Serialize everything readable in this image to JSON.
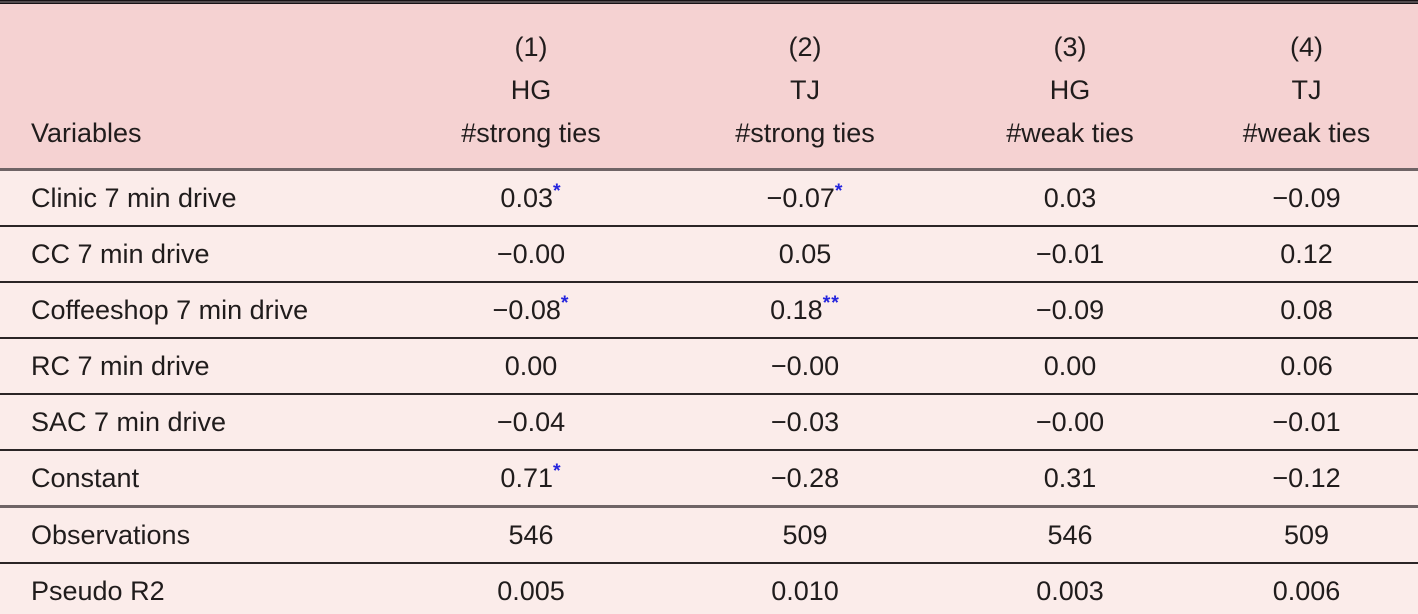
{
  "table": {
    "variables_header": "Variables",
    "columns": [
      {
        "number": "(1)",
        "group": "HG",
        "measure": "#strong ties"
      },
      {
        "number": "(2)",
        "group": "TJ",
        "measure": "#strong ties"
      },
      {
        "number": "(3)",
        "group": "HG",
        "measure": "#weak ties"
      },
      {
        "number": "(4)",
        "group": "TJ",
        "measure": "#weak ties"
      }
    ],
    "rows": [
      {
        "label": "Clinic 7 min drive",
        "cells": [
          {
            "value": "0.03",
            "stars": "*"
          },
          {
            "value": "−0.07",
            "stars": "*"
          },
          {
            "value": "0.03",
            "stars": ""
          },
          {
            "value": "−0.09",
            "stars": ""
          }
        ]
      },
      {
        "label": "CC 7 min drive",
        "cells": [
          {
            "value": "−0.00",
            "stars": ""
          },
          {
            "value": "0.05",
            "stars": ""
          },
          {
            "value": "−0.01",
            "stars": ""
          },
          {
            "value": "0.12",
            "stars": ""
          }
        ]
      },
      {
        "label": "Coffeeshop 7 min drive",
        "cells": [
          {
            "value": "−0.08",
            "stars": "*"
          },
          {
            "value": "0.18",
            "stars": "**"
          },
          {
            "value": "−0.09",
            "stars": ""
          },
          {
            "value": "0.08",
            "stars": ""
          }
        ]
      },
      {
        "label": "RC 7 min drive",
        "cells": [
          {
            "value": "0.00",
            "stars": ""
          },
          {
            "value": "−0.00",
            "stars": ""
          },
          {
            "value": "0.00",
            "stars": ""
          },
          {
            "value": "0.06",
            "stars": ""
          }
        ]
      },
      {
        "label": "SAC 7 min drive",
        "cells": [
          {
            "value": "−0.04",
            "stars": ""
          },
          {
            "value": "−0.03",
            "stars": ""
          },
          {
            "value": "−0.00",
            "stars": ""
          },
          {
            "value": "−0.01",
            "stars": ""
          }
        ]
      },
      {
        "label": "Constant",
        "cells": [
          {
            "value": "0.71",
            "stars": "*"
          },
          {
            "value": "−0.28",
            "stars": ""
          },
          {
            "value": "0.31",
            "stars": ""
          },
          {
            "value": "−0.12",
            "stars": ""
          }
        ]
      },
      {
        "label": "Observations",
        "cells": [
          {
            "value": "546",
            "stars": ""
          },
          {
            "value": "509",
            "stars": ""
          },
          {
            "value": "546",
            "stars": ""
          },
          {
            "value": "509",
            "stars": ""
          }
        ]
      },
      {
        "label": "Pseudo R2",
        "cells": [
          {
            "value": "0.005",
            "stars": ""
          },
          {
            "value": "0.010",
            "stars": ""
          },
          {
            "value": "0.003",
            "stars": ""
          },
          {
            "value": "0.006",
            "stars": ""
          }
        ]
      }
    ],
    "colors": {
      "header_background": "#f5d2d2",
      "body_background": "#fbecea",
      "significance_star": "#2424dd",
      "text": "#201c1c",
      "heavy_rule": "#171215",
      "medium_rule": "#6f6466",
      "thin_rule": "#2b2526"
    }
  }
}
